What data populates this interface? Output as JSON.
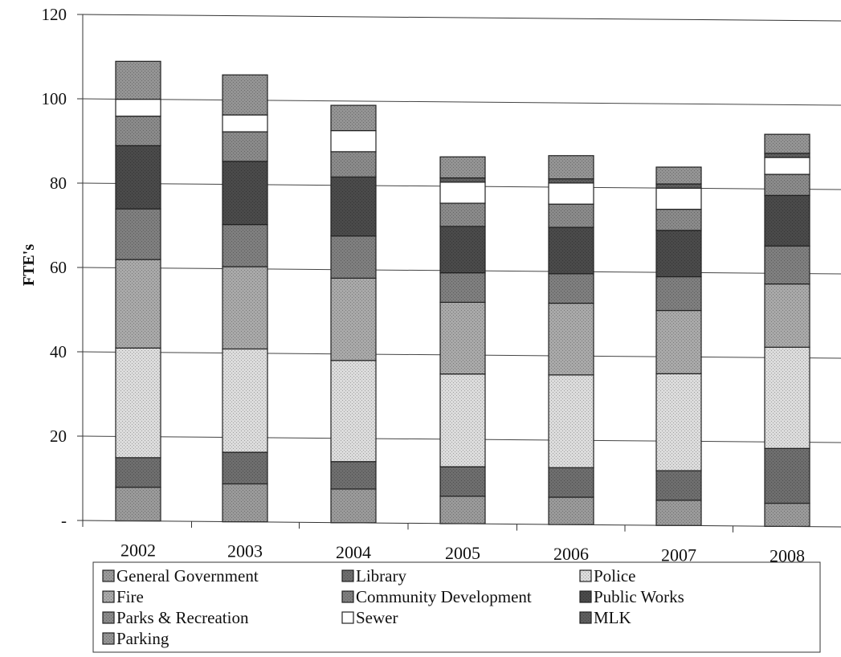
{
  "chart_data": {
    "type": "bar",
    "stacked": true,
    "title": "",
    "xlabel": "",
    "ylabel": "FTE's",
    "ylim": [
      0,
      120
    ],
    "yticks": [
      {
        "value": 0,
        "label": "-"
      },
      {
        "value": 20,
        "label": "20"
      },
      {
        "value": 40,
        "label": "40"
      },
      {
        "value": 60,
        "label": "60"
      },
      {
        "value": 80,
        "label": "80"
      },
      {
        "value": 100,
        "label": "100"
      },
      {
        "value": 120,
        "label": "120"
      }
    ],
    "grid": true,
    "legend_position": "bottom",
    "categories": [
      "2002",
      "2003",
      "2004",
      "2005",
      "2006",
      "2007",
      "2008"
    ],
    "series": [
      {
        "name": "General Government",
        "color": "#9a9a9a",
        "values": [
          8,
          9,
          8,
          6.5,
          6.5,
          6,
          5.5
        ]
      },
      {
        "name": "Library",
        "color": "#6e6e6e",
        "values": [
          7,
          7.5,
          6.5,
          7,
          7,
          7,
          13
        ]
      },
      {
        "name": "Police",
        "color": "#dcdcdc",
        "values": [
          26,
          24.5,
          24,
          22,
          22,
          23,
          24
        ]
      },
      {
        "name": "Fire",
        "color": "#a9a9a9",
        "values": [
          21,
          19.5,
          19.5,
          17,
          17,
          15,
          15
        ]
      },
      {
        "name": "Community Development",
        "color": "#7f7f7f",
        "values": [
          12,
          10,
          10,
          7,
          7,
          8,
          9
        ]
      },
      {
        "name": "Public Works",
        "color": "#4a4a4a",
        "values": [
          15,
          15,
          14,
          11,
          11,
          11,
          12
        ]
      },
      {
        "name": "Parks & Recreation",
        "color": "#8a8a8a",
        "values": [
          7,
          7,
          6,
          5.5,
          5.5,
          5,
          5
        ]
      },
      {
        "name": "Sewer",
        "color": "#ffffff",
        "values": [
          4,
          4,
          5,
          5,
          5,
          5,
          4
        ]
      },
      {
        "name": "MLK",
        "color": "#5e5e5e",
        "values": [
          0,
          0,
          0,
          1,
          1,
          1,
          1
        ]
      },
      {
        "name": "Parking",
        "color": "#949494",
        "values": [
          9,
          9.5,
          6,
          5,
          5.5,
          4,
          4.5
        ]
      }
    ]
  }
}
